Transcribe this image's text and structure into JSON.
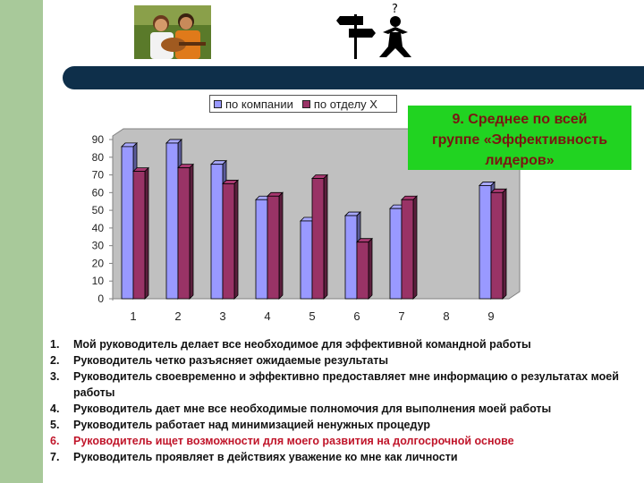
{
  "callout": {
    "lines": [
      "9. Среднее  по всей",
      "группе «Эффективность",
      "лидеров»"
    ]
  },
  "legend": {
    "series1": "по компании",
    "series2": "по отделу X"
  },
  "list": [
    {
      "num": "1.",
      "text": "Мой руководитель делает все необходимое для эффективной командной работы",
      "highlight": false
    },
    {
      "num": "2.",
      "text": "Руководитель четко разъясняет ожидаемые результаты",
      "highlight": false
    },
    {
      "num": "3.",
      "text": "Руководитель своевременно и эффективно предоставляет мне информацию о результатах моей работы",
      "highlight": false
    },
    {
      "num": "4.",
      "text": "Руководитель дает мне все необходимые полномочия для выполнения моей работы",
      "highlight": false
    },
    {
      "num": "5.",
      "text": "Руководитель работает над минимизацией ненужных процедур",
      "highlight": false
    },
    {
      "num": "6.",
      "text": "Руководитель ищет возможности для моего развития на долгосрочной основе",
      "highlight": true
    },
    {
      "num": "7.",
      "text": "Руководитель  проявляет в действиях уважение ко мне как личности",
      "highlight": false
    }
  ],
  "chart_data": {
    "type": "bar",
    "categories": [
      "1",
      "2",
      "3",
      "4",
      "5",
      "6",
      "7",
      "8",
      "9"
    ],
    "series": [
      {
        "name": "по компании",
        "values": [
          86,
          88,
          76,
          56,
          44,
          47,
          51,
          null,
          64
        ],
        "color": "#9999ff"
      },
      {
        "name": "по отделу X",
        "values": [
          72,
          74,
          65,
          58,
          68,
          32,
          56,
          null,
          60
        ],
        "color": "#993366"
      }
    ],
    "ylim": [
      0,
      90
    ],
    "yticks": [
      0,
      10,
      20,
      30,
      40,
      50,
      60,
      70,
      80,
      90
    ],
    "grid": false,
    "legend_position": "top"
  },
  "colors": {
    "left_strip": "#a8c99a",
    "top_bar": "#0e2f4a",
    "callout_bg": "#21d321",
    "callout_text": "#7a1612",
    "highlight_text": "#c0152a"
  }
}
